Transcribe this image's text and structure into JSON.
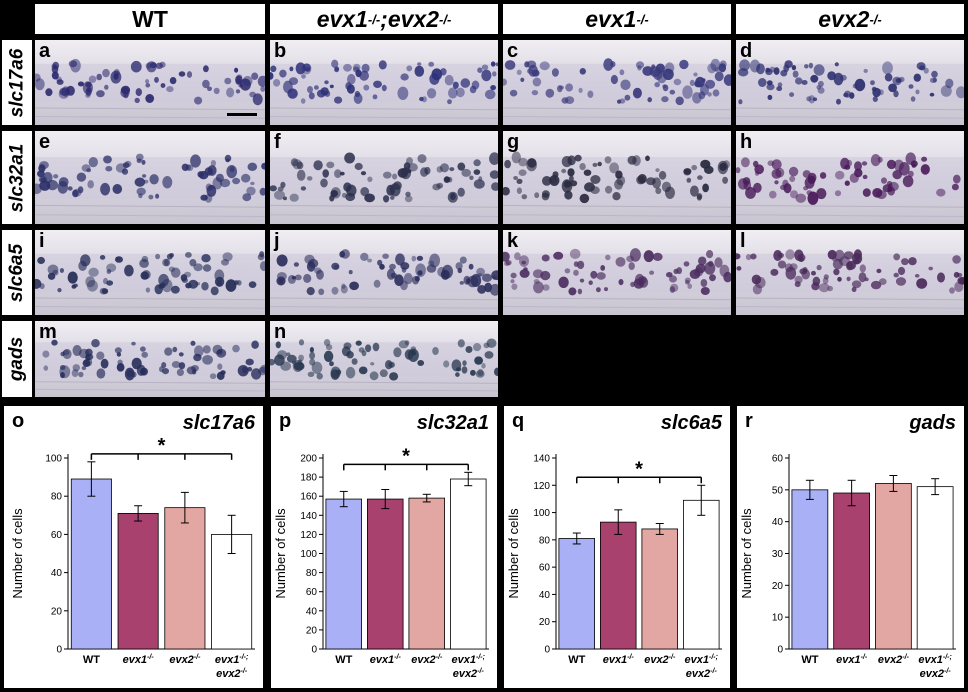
{
  "columns": [
    {
      "main": "WT",
      "sup": "",
      "italic": false
    },
    {
      "main": "evx1",
      "sup": "-/-",
      "mid": ";evx2",
      "sup2": "-/-",
      "italic": true
    },
    {
      "main": "evx1",
      "sup": "-/-",
      "italic": true
    },
    {
      "main": "evx2",
      "sup": "-/-",
      "italic": true
    }
  ],
  "rows": [
    "slc17a6",
    "slc32a1",
    "slc6a5",
    "gads"
  ],
  "micrographs": [
    {
      "letter": "a",
      "tint": "#2c2a6e"
    },
    {
      "letter": "b",
      "tint": "#2e3078"
    },
    {
      "letter": "c",
      "tint": "#3a3a7c"
    },
    {
      "letter": "d",
      "tint": "#2e3070"
    },
    {
      "letter": "e",
      "tint": "#2c3068"
    },
    {
      "letter": "f",
      "tint": "#2a2e4c"
    },
    {
      "letter": "g",
      "tint": "#2a2a40"
    },
    {
      "letter": "h",
      "tint": "#4a1c5a"
    },
    {
      "letter": "i",
      "tint": "#28305a"
    },
    {
      "letter": "j",
      "tint": "#2c2e5c"
    },
    {
      "letter": "k",
      "tint": "#4a2c5e"
    },
    {
      "letter": "l",
      "tint": "#4a2a5a"
    },
    {
      "letter": "m",
      "tint": "#262c5a"
    },
    {
      "letter": "n",
      "tint": "#26364e"
    }
  ],
  "chart_data": [
    {
      "letter": "o",
      "title": "slc17a6",
      "type": "bar",
      "ylabel": "Number of cells",
      "ylim": [
        0,
        100
      ],
      "yticks": [
        0,
        20,
        40,
        60,
        80,
        100
      ],
      "categories": [
        "WT",
        "evx1-/-",
        "evx2-/-",
        "evx1-/-; evx2-/-"
      ],
      "values": [
        89,
        71,
        74,
        60
      ],
      "errors": [
        9,
        4,
        8,
        10
      ],
      "significance": "*"
    },
    {
      "letter": "p",
      "title": "slc32a1",
      "type": "bar",
      "ylabel": "Number of cells",
      "ylim": [
        0,
        200
      ],
      "yticks": [
        0,
        20,
        40,
        60,
        80,
        100,
        120,
        140,
        160,
        180,
        200
      ],
      "categories": [
        "WT",
        "evx1-/-",
        "evx2-/-",
        "evx1-/-; evx2-/-"
      ],
      "values": [
        157,
        157,
        158,
        178
      ],
      "errors": [
        8,
        10,
        4,
        7
      ],
      "significance": "*"
    },
    {
      "letter": "q",
      "title": "slc6a5",
      "type": "bar",
      "ylabel": "Number of cells",
      "ylim": [
        0,
        140
      ],
      "yticks": [
        0,
        20,
        40,
        60,
        80,
        100,
        120,
        140
      ],
      "categories": [
        "WT",
        "evx1-/-",
        "evx2-/-",
        "evx1-/-; evx2-/-"
      ],
      "values": [
        81,
        93,
        88,
        109
      ],
      "errors": [
        4,
        9,
        4,
        11
      ],
      "significance": "*"
    },
    {
      "letter": "r",
      "title": "gads",
      "type": "bar",
      "ylabel": "Number of cells",
      "ylim": [
        0,
        60
      ],
      "yticks": [
        0,
        10,
        20,
        30,
        40,
        50,
        60
      ],
      "categories": [
        "WT",
        "evx1-/-",
        "evx2-/-",
        "evx1-/-; evx2-/-"
      ],
      "values": [
        50,
        49,
        52,
        51
      ],
      "errors": [
        3,
        4,
        2.5,
        2.5
      ],
      "significance": ""
    }
  ],
  "colors": {
    "bars": [
      "#aab0f5",
      "#a8416e",
      "#e3a7a3",
      "#ffffff"
    ],
    "background": "#000000",
    "panel": "#ffffff"
  }
}
